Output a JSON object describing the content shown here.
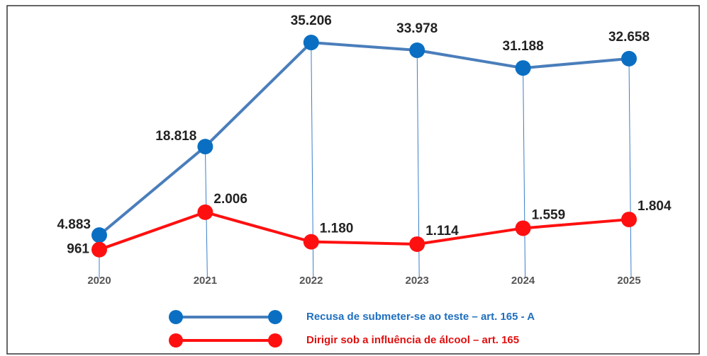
{
  "chart_data": {
    "type": "line",
    "categories": [
      "2020",
      "2021",
      "2022",
      "2023",
      "2024",
      "2025"
    ],
    "series": [
      {
        "name": "Recusa de submeter-se ao teste – art. 165 - A",
        "color": "#4a7ebb",
        "marker_color": "#0a6fc2",
        "values": [
          4883,
          18818,
          35206,
          33978,
          31188,
          32658
        ],
        "value_labels": [
          "4.883",
          "18.818",
          "35.206",
          "33.978",
          "31.188",
          "32.658"
        ]
      },
      {
        "name": "Dirigir sob a influência de álcool – art. 165",
        "color": "#ff1010",
        "marker_color": "#ff1010",
        "axis": "y2",
        "values": [
          961,
          2006,
          1180,
          1114,
          1559,
          1804
        ],
        "value_labels": [
          "961",
          "2.006",
          "1.180",
          "1.114",
          "1.559",
          "1.804"
        ]
      }
    ],
    "ylim": [
      0,
      40000
    ],
    "y2lim": [
      500,
      7600
    ]
  }
}
